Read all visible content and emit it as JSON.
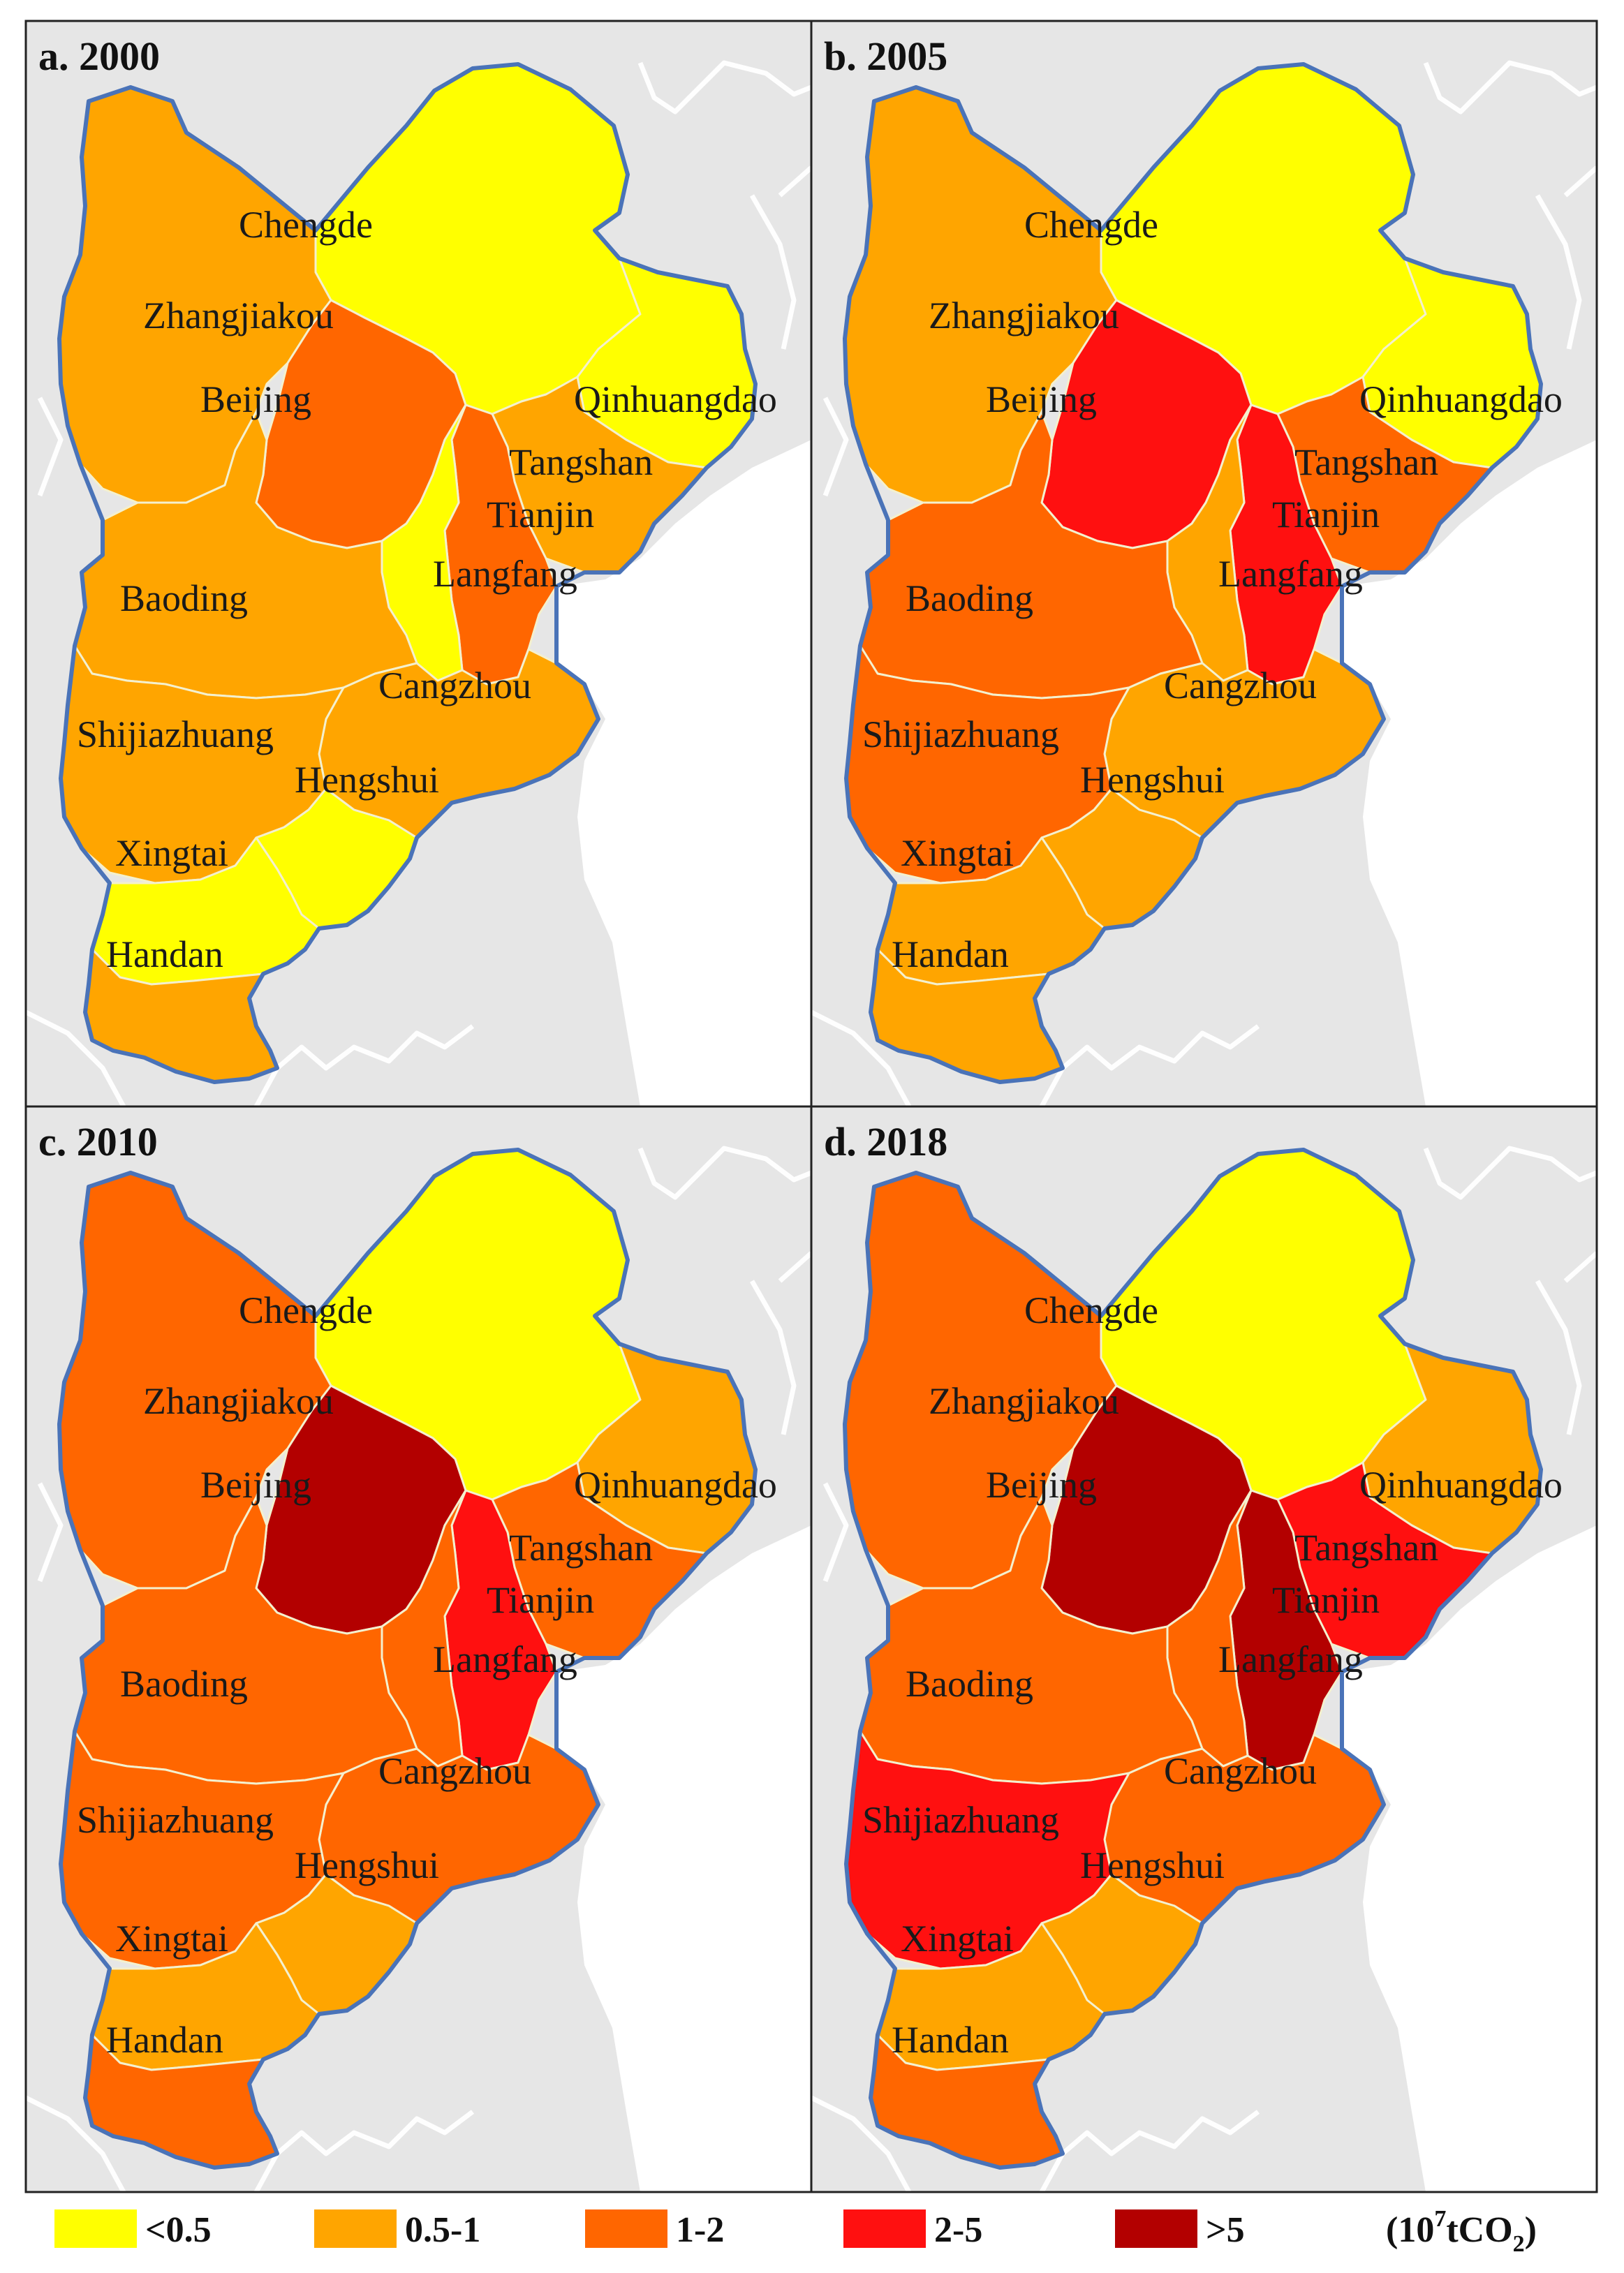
{
  "figure": {
    "panels": [
      {
        "title": "a. 2000",
        "classes": {
          "Chengde": "<0.5",
          "Zhangjiakou": "0.5-1",
          "Beijing": "1-2",
          "Qinhuangdao": "<0.5",
          "Tangshan": "0.5-1",
          "Tianjin": "1-2",
          "Langfang": "<0.5",
          "Baoding": "0.5-1",
          "Cangzhou": "0.5-1",
          "Shijiazhuang": "0.5-1",
          "Hengshui": "<0.5",
          "Xingtai": "<0.5",
          "Handan": "0.5-1"
        }
      },
      {
        "title": "b. 2005",
        "classes": {
          "Chengde": "<0.5",
          "Zhangjiakou": "0.5-1",
          "Beijing": "2-5",
          "Qinhuangdao": "<0.5",
          "Tangshan": "1-2",
          "Tianjin": "2-5",
          "Langfang": "0.5-1",
          "Baoding": "1-2",
          "Cangzhou": "0.5-1",
          "Shijiazhuang": "1-2",
          "Hengshui": "0.5-1",
          "Xingtai": "0.5-1",
          "Handan": "0.5-1"
        }
      },
      {
        "title": "c. 2010",
        "classes": {
          "Chengde": "<0.5",
          "Zhangjiakou": "1-2",
          "Beijing": ">5",
          "Qinhuangdao": "0.5-1",
          "Tangshan": "1-2",
          "Tianjin": "2-5",
          "Langfang": "1-2",
          "Baoding": "1-2",
          "Cangzhou": "1-2",
          "Shijiazhuang": "1-2",
          "Hengshui": "0.5-1",
          "Xingtai": "0.5-1",
          "Handan": "1-2"
        }
      },
      {
        "title": "d. 2018",
        "classes": {
          "Chengde": "<0.5",
          "Zhangjiakou": "1-2",
          "Beijing": ">5",
          "Qinhuangdao": "0.5-1",
          "Tangshan": "2-5",
          "Tianjin": ">5",
          "Langfang": "1-2",
          "Baoding": "1-2",
          "Cangzhou": "1-2",
          "Shijiazhuang": "2-5",
          "Hengshui": "0.5-1",
          "Xingtai": "0.5-1",
          "Handan": "1-2"
        }
      }
    ],
    "legend": {
      "items": [
        {
          "label": "<0.5",
          "color": "#ffff00"
        },
        {
          "label": "0.5-1",
          "color": "#ffa500"
        },
        {
          "label": "1-2",
          "color": "#ff6600"
        },
        {
          "label": "2-5",
          "color": "#ff1010"
        },
        {
          "label": ">5",
          "color": "#b30000"
        }
      ],
      "unit": "(10",
      "unit_exponent": "7",
      "unit_mid": "tCO",
      "unit_sub": "2",
      "unit_end": ")"
    }
  }
}
